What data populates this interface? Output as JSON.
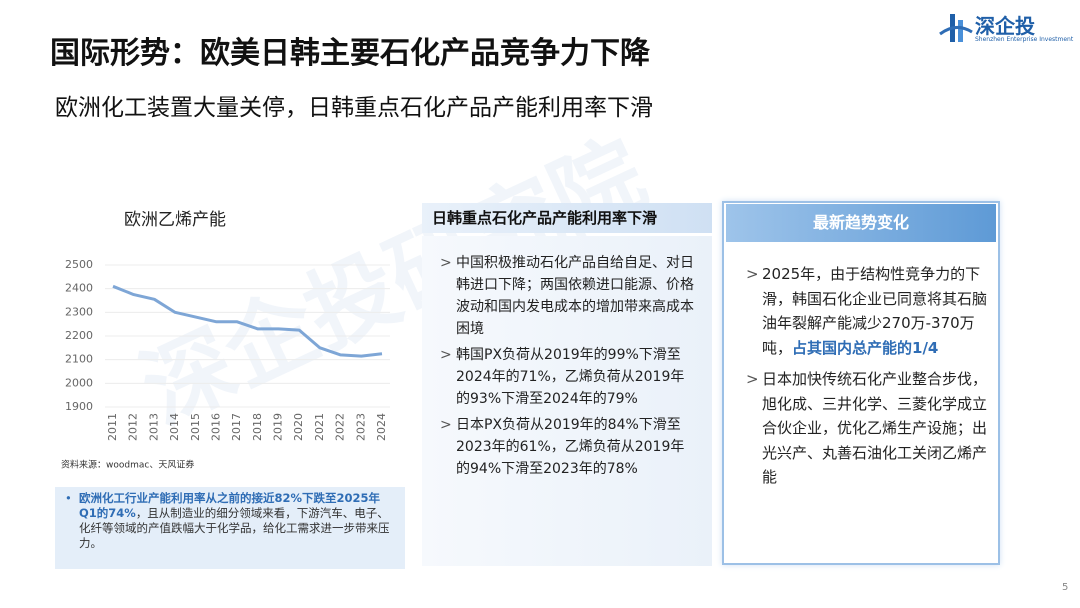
{
  "header": {
    "title": "国际形势：欧美日韩主要石化产品竞争力下降",
    "subtitle": "欧洲化工装置大量关停，日韩重点石化产品产能利用率下滑"
  },
  "logo": {
    "name": "深企投",
    "tagline": "Shenzhen Enterprise Investment"
  },
  "watermark": "深企投研究院",
  "chart_data": {
    "type": "line",
    "title": "欧洲乙烯产能",
    "categories": [
      "2011",
      "2012",
      "2013",
      "2014",
      "2015",
      "2016",
      "2017",
      "2018",
      "2019",
      "2020",
      "2021",
      "2022",
      "2023",
      "2024"
    ],
    "values": [
      2410,
      2375,
      2355,
      2300,
      2280,
      2260,
      2260,
      2230,
      2230,
      2225,
      2150,
      2120,
      2115,
      2125
    ],
    "color": "#7ea6d6",
    "ylim": [
      1900,
      2500
    ],
    "yticks": [
      1900,
      2000,
      2100,
      2200,
      2300,
      2400,
      2500
    ],
    "grid": true,
    "source": "资料来源：woodmac、天风证券"
  },
  "note": {
    "bold": "欧洲化工行业产能利用率从之前的接近82%下跌至2025年Q1的74%",
    "text": "，且从制造业的细分领域来看，下游汽车、电子、化纤等领域的产值跌幅大于化学品，给化工需求进一步带来压力。"
  },
  "middle_panel": {
    "title": "日韩重点石化产品产能利用率下滑",
    "bullets": [
      "中国积极推动石化产品自给自足、对日韩进口下降；两国依赖进口能源、价格波动和国内发电成本的增加带来高成本困境",
      "韩国PX负荷从2019年的99%下滑至2024年的71%，乙烯负荷从2019年的93%下滑至2024年的79%",
      "日本PX负荷从2019年的84%下滑至2023年的61%，乙烯负荷从2019年的94%下滑至2023年的78%"
    ]
  },
  "right_panel": {
    "title": "最新趋势变化",
    "bullet1": {
      "text": "2025年，由于结构性竞争力的下滑，韩国石化企业已同意将其石脑油年裂解产能减少270万-370万吨，",
      "bold": "占其国内总产能的1/4"
    },
    "bullet2": "日本加快传统石化产业整合步伐，旭化成、三井化学、三菱化学成立合伙企业，优化乙烯生产设施；出光兴产、丸善石油化工关闭乙烯产能"
  },
  "page_number": "5"
}
